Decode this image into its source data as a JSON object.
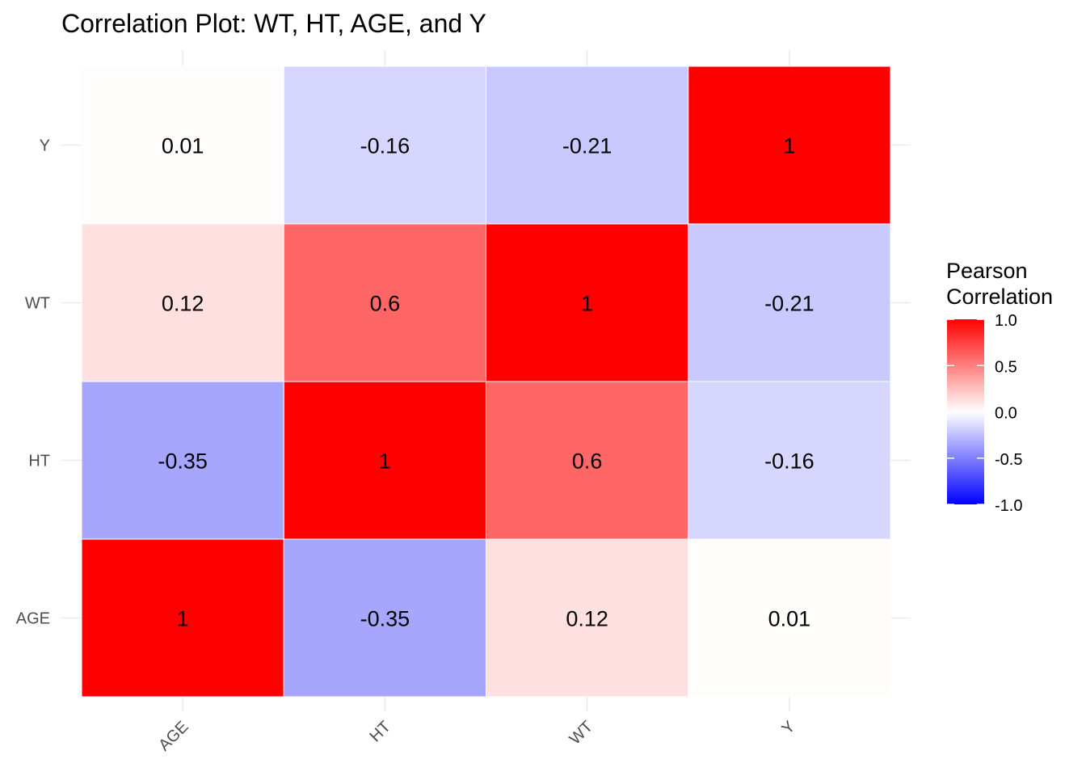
{
  "chart_data": {
    "type": "heatmap",
    "title": "Correlation Plot: WT, HT, AGE, and Y",
    "xlabel": "",
    "ylabel": "",
    "x_categories": [
      "AGE",
      "HT",
      "WT",
      "Y"
    ],
    "y_categories": [
      "AGE",
      "HT",
      "WT",
      "Y"
    ],
    "values": [
      [
        1,
        -0.35,
        0.12,
        0.01
      ],
      [
        -0.35,
        1,
        0.6,
        -0.16
      ],
      [
        0.12,
        0.6,
        1,
        -0.21
      ],
      [
        0.01,
        -0.16,
        -0.21,
        1
      ]
    ],
    "labels": [
      [
        "1",
        "-0.35",
        "0.12",
        "0.01"
      ],
      [
        "-0.35",
        "1",
        "0.6",
        "-0.16"
      ],
      [
        "0.12",
        "0.6",
        "1",
        "-0.21"
      ],
      [
        "0.01",
        "-0.16",
        "-0.21",
        "1"
      ]
    ],
    "color_scale": {
      "low": "#0000ff",
      "mid": "#ffffff",
      "high": "#ff0000",
      "limits": [
        -1,
        1
      ]
    },
    "legend": {
      "title_line1": "Pearson",
      "title_line2": "Correlation",
      "placement": "right",
      "breaks": [
        1.0,
        0.5,
        0.0,
        -0.5,
        -1.0
      ],
      "break_labels": [
        "1.0",
        "0.5",
        "0.0",
        "-0.5",
        "-1.0"
      ]
    },
    "grid": true
  }
}
